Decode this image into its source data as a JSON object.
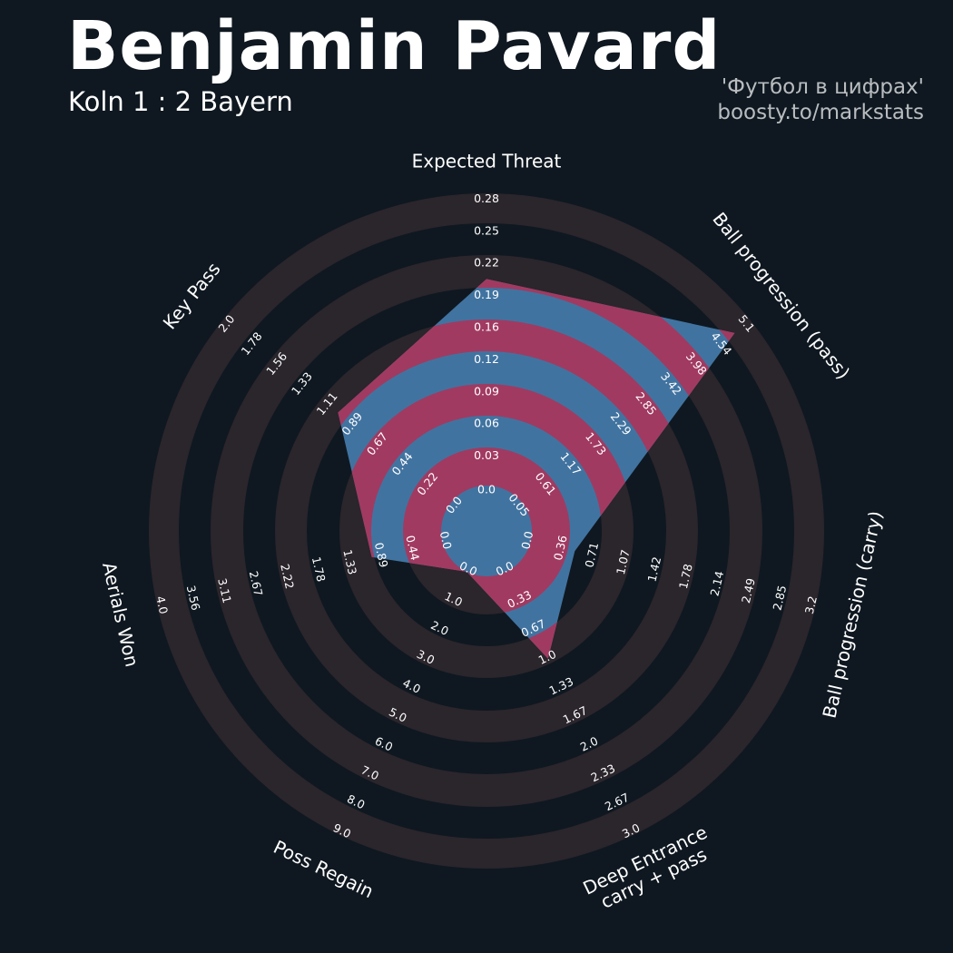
{
  "header": {
    "title": "Benjamin Pavard",
    "subtitle": "Koln 1 : 2 Bayern",
    "credit_line1": "'Футбол в цифрах'",
    "credit_line2": "boosty.to/markstats"
  },
  "colors": {
    "background": "#0f1820",
    "ring": "#2b252c",
    "player_fill": "#4173a0",
    "inner_band": "#a13a61",
    "text": "#ffffff",
    "credit": "#b9bdc0"
  },
  "chart_data": {
    "type": "radar",
    "title": "Benjamin Pavard",
    "subtitle": "Koln 1 : 2 Bayern",
    "axes": [
      {
        "label": "Expected Threat",
        "min": 0.0,
        "max": 0.28,
        "value": 0.2,
        "ticks": [
          "0.0",
          "0.03",
          "0.06",
          "0.09",
          "0.12",
          "0.16",
          "0.19",
          "0.22",
          "0.25",
          "0.28"
        ]
      },
      {
        "label": "Ball progression (pass)",
        "min": 0.0,
        "max": 5.1,
        "value": 4.8,
        "ticks": [
          "0.05",
          "0.61",
          "1.17",
          "1.73",
          "2.29",
          "2.85",
          "3.42",
          "3.98",
          "4.54",
          "5.1"
        ]
      },
      {
        "label": "Ball progression (carry)",
        "min": 0.0,
        "max": 3.2,
        "value": 0.5,
        "ticks": [
          "0.0",
          "0.36",
          "0.71",
          "1.07",
          "1.42",
          "1.78",
          "2.14",
          "2.49",
          "2.85",
          "3.2"
        ]
      },
      {
        "label": "Deep Entrance\ncarry + pass",
        "min": 0.0,
        "max": 3.0,
        "value": 1.0,
        "ticks": [
          "0.0",
          "0.33",
          "0.67",
          "1.0",
          "1.33",
          "1.67",
          "2.0",
          "2.33",
          "2.67",
          "3.0"
        ]
      },
      {
        "label": "Poss Regain",
        "min": 0.0,
        "max": 9.0,
        "value": 0.0,
        "ticks": [
          "0.0",
          "1.0",
          "2.0",
          "3.0",
          "4.0",
          "5.0",
          "6.0",
          "7.0",
          "8.0",
          "9.0"
        ]
      },
      {
        "label": "Aerials Won",
        "min": 0.0,
        "max": 4.0,
        "value": 1.0,
        "ticks": [
          "0.0",
          "0.44",
          "0.89",
          "1.33",
          "1.78",
          "2.22",
          "2.67",
          "3.11",
          "3.56",
          "4.0"
        ]
      },
      {
        "label": "Key Pass",
        "min": 0.0,
        "max": 2.0,
        "value": 1.0,
        "ticks": [
          "0.0",
          "0.22",
          "0.44",
          "0.67",
          "0.89",
          "1.11",
          "1.33",
          "1.56",
          "1.78",
          "2.0"
        ]
      }
    ],
    "grid": true
  }
}
